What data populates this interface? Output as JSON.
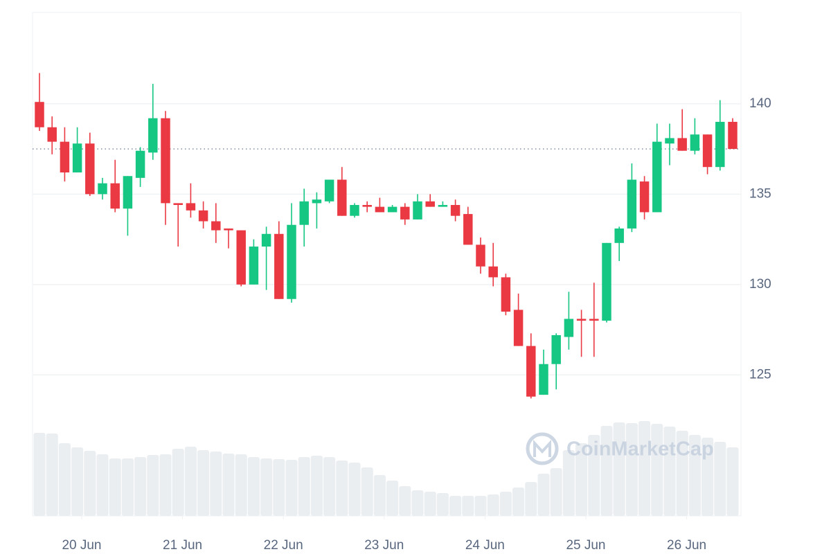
{
  "chart_data": {
    "type": "candlestick",
    "watermark": "CoinMarketCap",
    "open": [
      140.1,
      138.7,
      137.9,
      136.2,
      137.8,
      135.0,
      135.6,
      134.2,
      135.9,
      137.3,
      139.2,
      134.5,
      134.5,
      134.1,
      133.5,
      133.1,
      133.0,
      130.0,
      132.1,
      132.8,
      129.2,
      133.3,
      134.5,
      134.6,
      135.8,
      133.8,
      134.4,
      134.3,
      134.0,
      134.3,
      133.6,
      134.6,
      134.3,
      134.4,
      133.9,
      132.2,
      131.0,
      130.4,
      128.6,
      126.6,
      123.9,
      125.6,
      127.1,
      128.1,
      128.1,
      128.0,
      132.3,
      133.1,
      135.7,
      134.0,
      137.8,
      138.1,
      137.4,
      138.3,
      136.5,
      139.0
    ],
    "high": [
      141.7,
      139.3,
      138.7,
      138.7,
      138.4,
      135.9,
      136.9,
      136.0,
      137.6,
      141.1,
      139.6,
      134.5,
      135.6,
      134.6,
      134.5,
      133.1,
      133.0,
      132.5,
      133.2,
      133.5,
      134.5,
      135.3,
      135.1,
      135.8,
      136.5,
      134.5,
      134.6,
      134.8,
      134.4,
      134.5,
      135.0,
      135.0,
      134.6,
      134.7,
      134.3,
      132.6,
      132.3,
      130.6,
      129.5,
      127.3,
      126.4,
      127.3,
      129.6,
      128.6,
      130.1,
      132.3,
      133.2,
      136.7,
      136.0,
      138.9,
      138.9,
      139.7,
      139.2,
      138.3,
      140.2,
      139.2
    ],
    "low": [
      138.5,
      137.2,
      135.7,
      136.2,
      134.9,
      134.7,
      134.0,
      132.7,
      135.4,
      136.9,
      133.3,
      132.1,
      133.7,
      133.1,
      132.3,
      132.0,
      129.9,
      130.0,
      129.7,
      129.2,
      129.0,
      132.1,
      133.1,
      134.5,
      133.8,
      133.7,
      134.0,
      134.0,
      134.0,
      133.3,
      133.6,
      134.3,
      134.3,
      133.5,
      132.2,
      130.6,
      129.9,
      128.3,
      126.6,
      123.7,
      123.9,
      124.2,
      126.4,
      126.0,
      126.0,
      127.9,
      131.3,
      132.9,
      133.6,
      134.0,
      136.6,
      137.4,
      137.2,
      136.1,
      136.3,
      137.5
    ],
    "close": [
      138.7,
      137.9,
      136.2,
      137.8,
      135.0,
      135.6,
      134.2,
      136.0,
      137.4,
      139.2,
      134.5,
      134.4,
      134.1,
      133.5,
      133.0,
      133.0,
      130.0,
      132.1,
      132.8,
      129.2,
      133.3,
      134.6,
      134.7,
      135.8,
      133.8,
      134.4,
      134.3,
      134.0,
      134.3,
      133.6,
      134.6,
      134.3,
      134.4,
      133.8,
      132.2,
      131.0,
      130.4,
      128.5,
      126.6,
      123.8,
      125.6,
      127.2,
      128.1,
      128.0,
      128.0,
      132.3,
      133.1,
      135.8,
      134.0,
      137.9,
      138.1,
      137.4,
      138.3,
      136.5,
      139.0,
      137.5
    ],
    "volume": [
      120,
      119,
      105,
      99,
      94,
      89,
      83,
      83,
      85,
      88,
      89,
      97,
      100,
      95,
      93,
      90,
      89,
      85,
      83,
      82,
      81,
      85,
      87,
      85,
      80,
      77,
      70,
      59,
      51,
      43,
      37,
      35,
      33,
      29,
      29,
      29,
      31,
      35,
      41,
      49,
      61,
      69,
      95,
      105,
      117,
      130,
      135,
      134,
      137,
      133,
      129,
      123,
      117,
      113,
      107,
      99
    ],
    "vlim": [
      0,
      160
    ],
    "up_color": "#16c784",
    "down_color": "#ea3943",
    "volume_color": "#eaeef1",
    "ylim": [
      117.2,
      145.05
    ],
    "yticks": [
      125,
      130,
      135,
      140
    ],
    "xlim": [
      -0.55,
      55.66
    ],
    "xticks": [
      {
        "value": 3.35,
        "label": "20 Jun"
      },
      {
        "value": 11.35,
        "label": "21 Jun"
      },
      {
        "value": 19.35,
        "label": "22 Jun"
      },
      {
        "value": 27.35,
        "label": "23 Jun"
      },
      {
        "value": 35.35,
        "label": "24 Jun"
      },
      {
        "value": 43.35,
        "label": "25 Jun"
      },
      {
        "value": 51.35,
        "label": "26 Jun"
      }
    ],
    "grid": true
  }
}
